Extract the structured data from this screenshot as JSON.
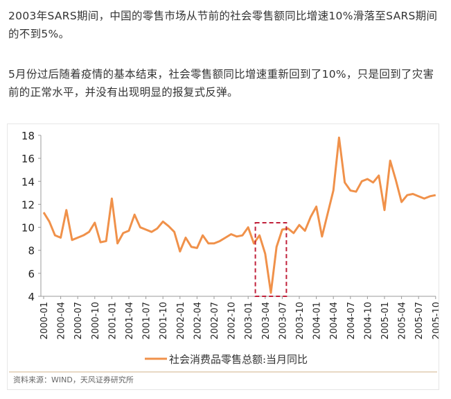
{
  "paragraphs": [
    "2003年SARS期间，中国的零售市场从节前的社会零售额同比增速10%滑落至SARS期间的不到5%。",
    "5月份过后随着疫情的基本结束，社会零售额同比增速重新回到了10%，只是回到了灾害前的正常水平，并没有出现明显的报复式反弹。"
  ],
  "source": "资料来源：WIND，天风证券研究所",
  "chart_data": {
    "type": "line",
    "title": "",
    "xlabel": "",
    "ylabel": "",
    "ylim": [
      4,
      18
    ],
    "yticks": [
      "4",
      "6",
      "8",
      "10",
      "12",
      "14",
      "16",
      "18"
    ],
    "xticks": [
      "2000-01",
      "2000-04",
      "2000-07",
      "2000-10",
      "2001-01",
      "2001-04",
      "2001-07",
      "2001-10",
      "2002-01",
      "2002-04",
      "2002-07",
      "2002-10",
      "2003-01",
      "2003-04",
      "2003-07",
      "2003-10",
      "2004-01",
      "2004-04",
      "2004-07",
      "2004-10",
      "2005-01",
      "2005-04",
      "2005-07",
      "2005-10"
    ],
    "legend": "社会消费品零售总额:当月同比",
    "legend_position": "bottom",
    "highlight": {
      "from": "2003-03",
      "to": "2003-07",
      "color": "#c0203a"
    },
    "color": "#f0914a",
    "series": [
      {
        "name": "社会消费品零售总额:当月同比",
        "start": "2000-01",
        "values": [
          11.3,
          10.5,
          9.3,
          9.1,
          11.5,
          8.9,
          9.1,
          9.3,
          9.6,
          10.4,
          8.7,
          8.8,
          12.5,
          8.6,
          9.5,
          9.7,
          11.1,
          10.0,
          9.8,
          9.6,
          9.9,
          10.5,
          10.1,
          9.6,
          7.9,
          9.1,
          8.3,
          8.2,
          9.3,
          8.6,
          8.6,
          8.8,
          9.1,
          9.4,
          9.2,
          9.3,
          10.0,
          8.6,
          9.3,
          7.7,
          4.3,
          8.3,
          9.8,
          9.9,
          9.5,
          10.2,
          9.7,
          10.9,
          11.8,
          9.2,
          11.2,
          13.2,
          17.8,
          13.9,
          13.2,
          13.1,
          14.0,
          14.2,
          13.9,
          14.5,
          11.5,
          15.8,
          14.1,
          12.2,
          12.8,
          12.9,
          12.7,
          12.5,
          12.7,
          12.8
        ]
      }
    ]
  }
}
